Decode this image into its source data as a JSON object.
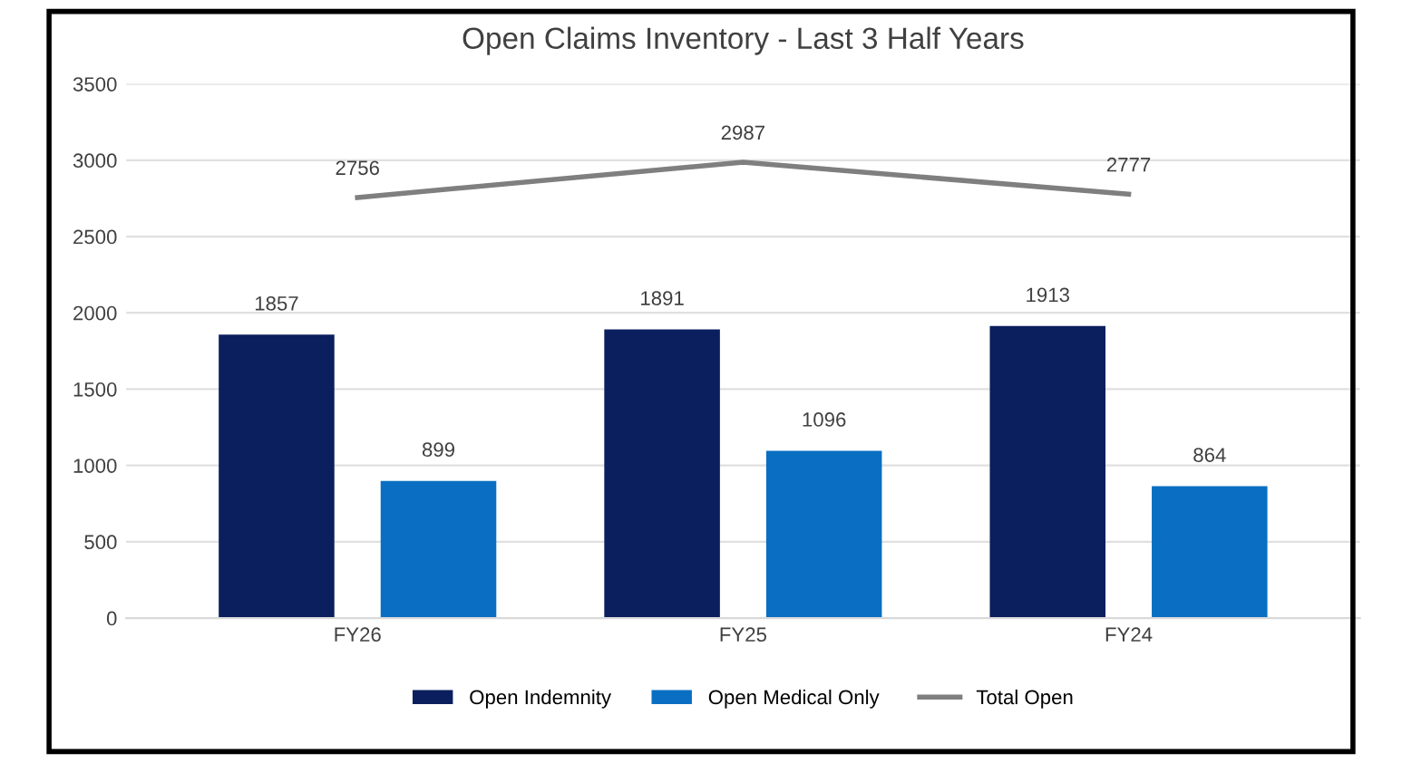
{
  "chart_data": {
    "type": "bar",
    "title": "Open Claims Inventory - Last 3 Half Years",
    "categories": [
      "FY26",
      "FY25",
      "FY24"
    ],
    "series": [
      {
        "name": "Open Indemnity",
        "color": "#0b1f5e",
        "values": [
          1857,
          1891,
          1913
        ]
      },
      {
        "name": "Open Medical Only",
        "color": "#0a6fc2",
        "values": [
          899,
          1096,
          864
        ]
      },
      {
        "name": "Total Open",
        "type": "line",
        "color": "#7f7f7f",
        "values": [
          2756,
          2987,
          2777
        ]
      }
    ],
    "ylim": [
      0,
      3500
    ],
    "yticks": [
      0,
      500,
      1000,
      1500,
      2000,
      2500,
      3000,
      3500
    ],
    "grid": "y",
    "legend": "bottom",
    "data_labels": true
  }
}
